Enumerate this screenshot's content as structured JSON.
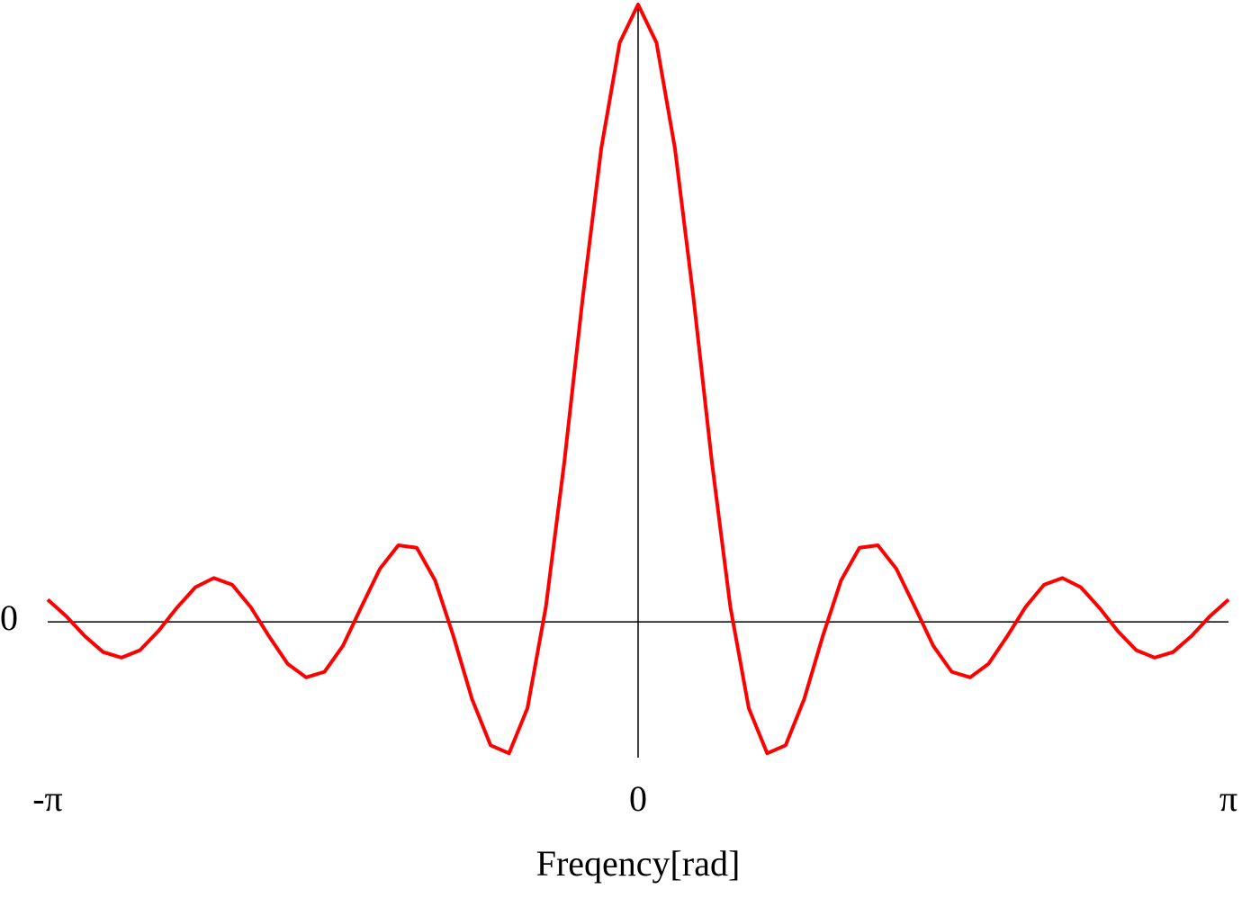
{
  "chart_data": {
    "type": "line",
    "x_label": "Freqency[rad]",
    "x": [
      -3.142,
      -3.043,
      -2.945,
      -2.847,
      -2.749,
      -2.651,
      -2.553,
      -2.454,
      -2.356,
      -2.258,
      -2.16,
      -2.062,
      -1.963,
      -1.865,
      -1.767,
      -1.669,
      -1.571,
      -1.473,
      -1.374,
      -1.276,
      -1.178,
      -1.08,
      -0.982,
      -0.884,
      -0.785,
      -0.687,
      -0.589,
      -0.491,
      -0.393,
      -0.295,
      -0.196,
      -0.098,
      0,
      0.098,
      0.196,
      0.295,
      0.393,
      0.491,
      0.589,
      0.687,
      0.785,
      0.884,
      0.982,
      1.08,
      1.178,
      1.276,
      1.374,
      1.473,
      1.571,
      1.669,
      1.767,
      1.865,
      1.963,
      2.062,
      2.16,
      2.258,
      2.356,
      2.454,
      2.553,
      2.651,
      2.749,
      2.847,
      2.945,
      3.043,
      3.142
    ],
    "series": [
      {
        "color": "#ff0000",
        "values": [
          0.036,
          0.009,
          -0.023,
          -0.049,
          -0.058,
          -0.046,
          -0.015,
          0.023,
          0.056,
          0.071,
          0.06,
          0.024,
          -0.024,
          -0.068,
          -0.09,
          -0.081,
          -0.039,
          0.024,
          0.086,
          0.124,
          0.12,
          0.067,
          -0.024,
          -0.125,
          -0.2,
          -0.213,
          -0.14,
          0.024,
          0.258,
          0.524,
          0.767,
          0.938,
          1,
          0.938,
          0.767,
          0.524,
          0.258,
          0.024,
          -0.14,
          -0.213,
          -0.2,
          -0.125,
          -0.024,
          0.067,
          0.12,
          0.124,
          0.086,
          0.024,
          -0.039,
          -0.081,
          -0.09,
          -0.068,
          -0.024,
          0.024,
          0.06,
          0.071,
          0.056,
          0.023,
          -0.015,
          -0.046,
          -0.058,
          -0.049,
          -0.023,
          0.009,
          0.036
        ]
      }
    ],
    "xlim": [
      -3.142,
      3.142
    ],
    "xticks": [
      {
        "value": -3.142,
        "label": "-π"
      },
      0,
      {
        "value": 3.142,
        "label": "π"
      }
    ],
    "ylim": [
      -0.22,
      1
    ],
    "yticks": [
      0
    ]
  }
}
